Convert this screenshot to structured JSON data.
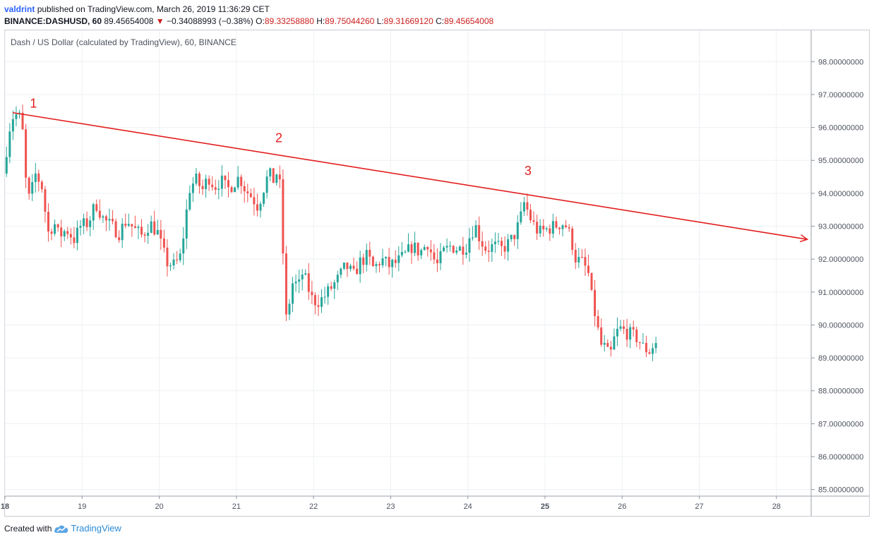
{
  "header": {
    "author": "valdrint",
    "published_text": "published on TradingView.com, March 26, 2019 11:36:29 CET",
    "symbol": "BINANCE:DASHUSD, 60",
    "last_price": "89.45654008",
    "change_arrow": "▼",
    "change": "−0.34088993 (−0.38%)",
    "ohlc": [
      {
        "label": "O:",
        "value": "89.33258880"
      },
      {
        "label": "H:",
        "value": "89.75044260"
      },
      {
        "label": "L:",
        "value": "89.31669120"
      },
      {
        "label": "C:",
        "value": "89.45654008"
      }
    ]
  },
  "footer": {
    "created_with": "Created with",
    "brand": "TradingView"
  },
  "chart_data": {
    "type": "candlestick",
    "title": "Dash / US Dollar (calculated by TradingView), 60, BINANCE",
    "x_range": [
      18.0,
      28.45
    ],
    "y_range": [
      84.8,
      98.95
    ],
    "x_ticks": [
      {
        "value": 18,
        "label": "18",
        "bold": true
      },
      {
        "value": 19,
        "label": "19",
        "bold": false
      },
      {
        "value": 20,
        "label": "20",
        "bold": false
      },
      {
        "value": 21,
        "label": "21",
        "bold": false
      },
      {
        "value": 22,
        "label": "22",
        "bold": false
      },
      {
        "value": 23,
        "label": "23",
        "bold": false
      },
      {
        "value": 24,
        "label": "24",
        "bold": false
      },
      {
        "value": 25,
        "label": "25",
        "bold": true
      },
      {
        "value": 26,
        "label": "26",
        "bold": false
      },
      {
        "value": 27,
        "label": "27",
        "bold": false
      },
      {
        "value": 28,
        "label": "28",
        "bold": false
      }
    ],
    "y_ticks": [
      {
        "value": 85,
        "label": "85.00000000"
      },
      {
        "value": 86,
        "label": "86.00000000"
      },
      {
        "value": 87,
        "label": "87.00000000"
      },
      {
        "value": 88,
        "label": "88.00000000"
      },
      {
        "value": 89,
        "label": "89.00000000"
      },
      {
        "value": 90,
        "label": "90.00000000"
      },
      {
        "value": 91,
        "label": "91.00000000"
      },
      {
        "value": 92,
        "label": "92.00000000"
      },
      {
        "value": 93,
        "label": "93.00000000"
      },
      {
        "value": 94,
        "label": "94.00000000"
      },
      {
        "value": 95,
        "label": "95.00000000"
      },
      {
        "value": 96,
        "label": "96.00000000"
      },
      {
        "value": 97,
        "label": "97.00000000"
      },
      {
        "value": 98,
        "label": "98.00000000"
      }
    ],
    "price_path": [
      [
        18.0,
        94.6
      ],
      [
        18.02,
        95.0
      ],
      [
        18.06,
        95.6
      ],
      [
        18.1,
        96.3
      ],
      [
        18.18,
        96.4
      ],
      [
        18.24,
        96.2
      ],
      [
        18.3,
        94.1
      ],
      [
        18.34,
        93.8
      ],
      [
        18.42,
        94.6
      ],
      [
        18.5,
        94.2
      ],
      [
        18.58,
        92.8
      ],
      [
        18.66,
        93.1
      ],
      [
        18.72,
        92.7
      ],
      [
        18.82,
        92.9
      ],
      [
        18.92,
        92.6
      ],
      [
        19.0,
        93.0
      ],
      [
        19.1,
        93.1
      ],
      [
        19.2,
        93.7
      ],
      [
        19.3,
        93.2
      ],
      [
        19.4,
        93.0
      ],
      [
        19.5,
        92.8
      ],
      [
        19.6,
        93.2
      ],
      [
        19.7,
        92.9
      ],
      [
        19.8,
        92.7
      ],
      [
        19.9,
        93.1
      ],
      [
        20.0,
        92.8
      ],
      [
        20.06,
        92.3
      ],
      [
        20.12,
        91.9
      ],
      [
        20.22,
        91.8
      ],
      [
        20.3,
        92.1
      ],
      [
        20.36,
        93.2
      ],
      [
        20.42,
        94.2
      ],
      [
        20.5,
        94.4
      ],
      [
        20.58,
        94.1
      ],
      [
        20.66,
        94.5
      ],
      [
        20.74,
        94.2
      ],
      [
        20.82,
        94.4
      ],
      [
        20.9,
        94.1
      ],
      [
        20.98,
        94.3
      ],
      [
        21.06,
        94.5
      ],
      [
        21.14,
        94.1
      ],
      [
        21.22,
        93.9
      ],
      [
        21.3,
        93.6
      ],
      [
        21.38,
        94.2
      ],
      [
        21.44,
        94.6
      ],
      [
        21.5,
        94.4
      ],
      [
        21.56,
        94.7
      ],
      [
        21.6,
        93.9
      ],
      [
        21.62,
        92.5
      ],
      [
        21.66,
        90.1
      ],
      [
        21.7,
        90.6
      ],
      [
        21.76,
        91.4
      ],
      [
        21.82,
        91.1
      ],
      [
        21.88,
        91.6
      ],
      [
        21.94,
        91.2
      ],
      [
        22.0,
        90.8
      ],
      [
        22.06,
        90.7
      ],
      [
        22.14,
        90.8
      ],
      [
        22.24,
        91.1
      ],
      [
        22.34,
        91.4
      ],
      [
        22.44,
        91.8
      ],
      [
        22.54,
        91.5
      ],
      [
        22.62,
        91.9
      ],
      [
        22.72,
        92.1
      ],
      [
        22.8,
        91.7
      ],
      [
        22.9,
        92.0
      ],
      [
        23.0,
        91.8
      ],
      [
        23.1,
        91.9
      ],
      [
        23.2,
        92.1
      ],
      [
        23.3,
        92.4
      ],
      [
        23.4,
        92.2
      ],
      [
        23.5,
        92.5
      ],
      [
        23.56,
        92.1
      ],
      [
        23.62,
        91.8
      ],
      [
        23.7,
        92.2
      ],
      [
        23.8,
        92.4
      ],
      [
        23.9,
        92.3
      ],
      [
        24.0,
        92.4
      ],
      [
        24.06,
        92.8
      ],
      [
        24.12,
        93.0
      ],
      [
        24.18,
        92.6
      ],
      [
        24.26,
        92.3
      ],
      [
        24.36,
        92.4
      ],
      [
        24.46,
        92.3
      ],
      [
        24.56,
        92.5
      ],
      [
        24.64,
        92.8
      ],
      [
        24.7,
        93.2
      ],
      [
        24.76,
        93.8
      ],
      [
        24.8,
        93.4
      ],
      [
        24.86,
        93.1
      ],
      [
        24.94,
        92.8
      ],
      [
        25.04,
        92.9
      ],
      [
        25.14,
        93.0
      ],
      [
        25.24,
        93.1
      ],
      [
        25.3,
        93.0
      ],
      [
        25.36,
        92.6
      ],
      [
        25.42,
        92.0
      ],
      [
        25.5,
        91.9
      ],
      [
        25.58,
        91.6
      ],
      [
        25.62,
        90.9
      ],
      [
        25.68,
        90.2
      ],
      [
        25.74,
        89.4
      ],
      [
        25.8,
        89.3
      ],
      [
        25.86,
        89.0
      ],
      [
        25.92,
        89.6
      ],
      [
        25.98,
        89.9
      ],
      [
        26.06,
        89.8
      ],
      [
        26.14,
        89.7
      ],
      [
        26.22,
        89.6
      ],
      [
        26.3,
        89.3
      ],
      [
        26.38,
        89.2
      ],
      [
        26.44,
        89.45
      ]
    ],
    "annotations": [
      {
        "label": "1",
        "x": 18.37,
        "y": 96.6
      },
      {
        "label": "2",
        "x": 21.55,
        "y": 95.55
      },
      {
        "label": "3",
        "x": 24.78,
        "y": 94.55
      }
    ],
    "trendline": {
      "from": [
        18.1,
        96.45
      ],
      "to": [
        28.4,
        92.6
      ],
      "color": "#e31e1e"
    },
    "colors": {
      "up": "#26a69a",
      "down": "#ef5350",
      "grid": "#eef0f4",
      "axis": "#8f959e",
      "label": "#4c525e",
      "annotation": "#e31e1e"
    }
  }
}
